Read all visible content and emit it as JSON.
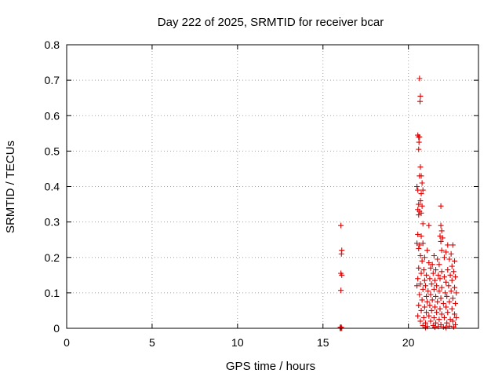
{
  "chart_data": {
    "type": "scatter",
    "title": "Day 222 of 2025, SRMTID for receiver bcar",
    "xlabel": "GPS time / hours",
    "ylabel": "SRMTID / TECUs",
    "xlim": [
      0,
      24.1
    ],
    "ylim": [
      0,
      0.8
    ],
    "xticks": [
      0,
      5,
      10,
      15,
      20
    ],
    "xtick_labels": [
      "0",
      "5",
      "10",
      "15",
      "20"
    ],
    "yticks": [
      0,
      0.1,
      0.2,
      0.3,
      0.4,
      0.5,
      0.6,
      0.7,
      0.8
    ],
    "ytick_labels": [
      "0",
      "0.1",
      "0.2",
      "0.3",
      "0.4",
      "0.5",
      "0.6",
      "0.7",
      "0.8"
    ],
    "grid": true,
    "marker": "+",
    "color": "#e00000",
    "series": [
      {
        "name": "SRMTID",
        "points": [
          [
            16.05,
            0.29
          ],
          [
            16.1,
            0.22
          ],
          [
            16.08,
            0.21
          ],
          [
            16.05,
            0.155
          ],
          [
            16.1,
            0.15
          ],
          [
            16.05,
            0.107
          ],
          [
            16.0,
            0.0
          ],
          [
            16.05,
            0.0
          ],
          [
            16.1,
            0.0
          ],
          [
            16.02,
            0.003
          ],
          [
            16.07,
            0.003
          ],
          [
            20.65,
            0.705
          ],
          [
            20.7,
            0.655
          ],
          [
            20.68,
            0.64
          ],
          [
            20.55,
            0.545
          ],
          [
            20.6,
            0.54
          ],
          [
            20.65,
            0.54
          ],
          [
            20.62,
            0.525
          ],
          [
            20.6,
            0.505
          ],
          [
            20.7,
            0.455
          ],
          [
            20.75,
            0.43
          ],
          [
            20.65,
            0.43
          ],
          [
            20.8,
            0.41
          ],
          [
            20.5,
            0.4
          ],
          [
            20.55,
            0.39
          ],
          [
            20.85,
            0.39
          ],
          [
            20.75,
            0.38
          ],
          [
            20.7,
            0.36
          ],
          [
            20.6,
            0.35
          ],
          [
            20.8,
            0.345
          ],
          [
            20.55,
            0.335
          ],
          [
            20.65,
            0.33
          ],
          [
            20.75,
            0.325
          ],
          [
            20.6,
            0.32
          ],
          [
            21.9,
            0.345
          ],
          [
            21.2,
            0.29
          ],
          [
            20.85,
            0.295
          ],
          [
            21.9,
            0.29
          ],
          [
            21.95,
            0.275
          ],
          [
            20.55,
            0.265
          ],
          [
            20.75,
            0.26
          ],
          [
            21.85,
            0.26
          ],
          [
            22.0,
            0.255
          ],
          [
            21.9,
            0.245
          ],
          [
            20.5,
            0.24
          ],
          [
            20.65,
            0.235
          ],
          [
            20.85,
            0.24
          ],
          [
            22.3,
            0.235
          ],
          [
            22.6,
            0.235
          ],
          [
            20.6,
            0.225
          ],
          [
            21.1,
            0.22
          ],
          [
            21.95,
            0.22
          ],
          [
            22.2,
            0.215
          ],
          [
            22.5,
            0.21
          ],
          [
            20.7,
            0.205
          ],
          [
            20.95,
            0.2
          ],
          [
            21.5,
            0.205
          ],
          [
            21.7,
            0.195
          ],
          [
            22.1,
            0.2
          ],
          [
            22.4,
            0.195
          ],
          [
            22.7,
            0.19
          ],
          [
            20.8,
            0.19
          ],
          [
            21.2,
            0.185
          ],
          [
            21.4,
            0.18
          ],
          [
            21.8,
            0.18
          ],
          [
            22.55,
            0.175
          ],
          [
            20.6,
            0.17
          ],
          [
            20.9,
            0.165
          ],
          [
            21.3,
            0.17
          ],
          [
            21.6,
            0.165
          ],
          [
            21.95,
            0.16
          ],
          [
            22.3,
            0.165
          ],
          [
            22.65,
            0.16
          ],
          [
            20.75,
            0.155
          ],
          [
            21.05,
            0.15
          ],
          [
            21.45,
            0.155
          ],
          [
            21.75,
            0.15
          ],
          [
            22.1,
            0.145
          ],
          [
            22.45,
            0.15
          ],
          [
            22.75,
            0.145
          ],
          [
            20.55,
            0.14
          ],
          [
            20.95,
            0.135
          ],
          [
            21.25,
            0.14
          ],
          [
            21.55,
            0.135
          ],
          [
            21.85,
            0.14
          ],
          [
            22.2,
            0.13
          ],
          [
            22.55,
            0.135
          ],
          [
            20.7,
            0.125
          ],
          [
            21.0,
            0.12
          ],
          [
            21.35,
            0.125
          ],
          [
            21.65,
            0.12
          ],
          [
            21.95,
            0.115
          ],
          [
            22.35,
            0.12
          ],
          [
            22.7,
            0.115
          ],
          [
            20.5,
            0.12
          ],
          [
            20.85,
            0.11
          ],
          [
            21.15,
            0.105
          ],
          [
            21.5,
            0.11
          ],
          [
            21.8,
            0.105
          ],
          [
            22.15,
            0.1
          ],
          [
            22.5,
            0.105
          ],
          [
            22.8,
            0.1
          ],
          [
            20.65,
            0.095
          ],
          [
            21.05,
            0.09
          ],
          [
            21.3,
            0.095
          ],
          [
            21.6,
            0.09
          ],
          [
            21.9,
            0.085
          ],
          [
            22.25,
            0.09
          ],
          [
            22.6,
            0.085
          ],
          [
            20.8,
            0.08
          ],
          [
            21.1,
            0.075
          ],
          [
            21.4,
            0.08
          ],
          [
            21.7,
            0.075
          ],
          [
            22.05,
            0.07
          ],
          [
            22.4,
            0.075
          ],
          [
            22.75,
            0.07
          ],
          [
            20.6,
            0.065
          ],
          [
            20.95,
            0.06
          ],
          [
            21.25,
            0.065
          ],
          [
            21.55,
            0.06
          ],
          [
            21.85,
            0.055
          ],
          [
            22.2,
            0.06
          ],
          [
            22.55,
            0.055
          ],
          [
            20.75,
            0.05
          ],
          [
            21.05,
            0.045
          ],
          [
            21.35,
            0.05
          ],
          [
            21.65,
            0.045
          ],
          [
            21.95,
            0.04
          ],
          [
            22.3,
            0.045
          ],
          [
            22.7,
            0.04
          ],
          [
            20.55,
            0.035
          ],
          [
            20.9,
            0.03
          ],
          [
            21.2,
            0.035
          ],
          [
            21.5,
            0.03
          ],
          [
            21.8,
            0.025
          ],
          [
            22.1,
            0.03
          ],
          [
            22.45,
            0.025
          ],
          [
            22.8,
            0.03
          ],
          [
            20.7,
            0.02
          ],
          [
            21.0,
            0.015
          ],
          [
            21.3,
            0.02
          ],
          [
            21.6,
            0.015
          ],
          [
            21.9,
            0.01
          ],
          [
            22.25,
            0.015
          ],
          [
            22.6,
            0.02
          ],
          [
            20.85,
            0.008
          ],
          [
            21.1,
            0.005
          ],
          [
            21.45,
            0.008
          ],
          [
            21.75,
            0.005
          ],
          [
            22.05,
            0.004
          ],
          [
            22.4,
            0.006
          ],
          [
            22.75,
            0.01
          ],
          [
            21.0,
            0.002
          ],
          [
            21.55,
            0.003
          ],
          [
            22.2,
            0.002
          ],
          [
            22.65,
            0.004
          ]
        ]
      }
    ]
  }
}
